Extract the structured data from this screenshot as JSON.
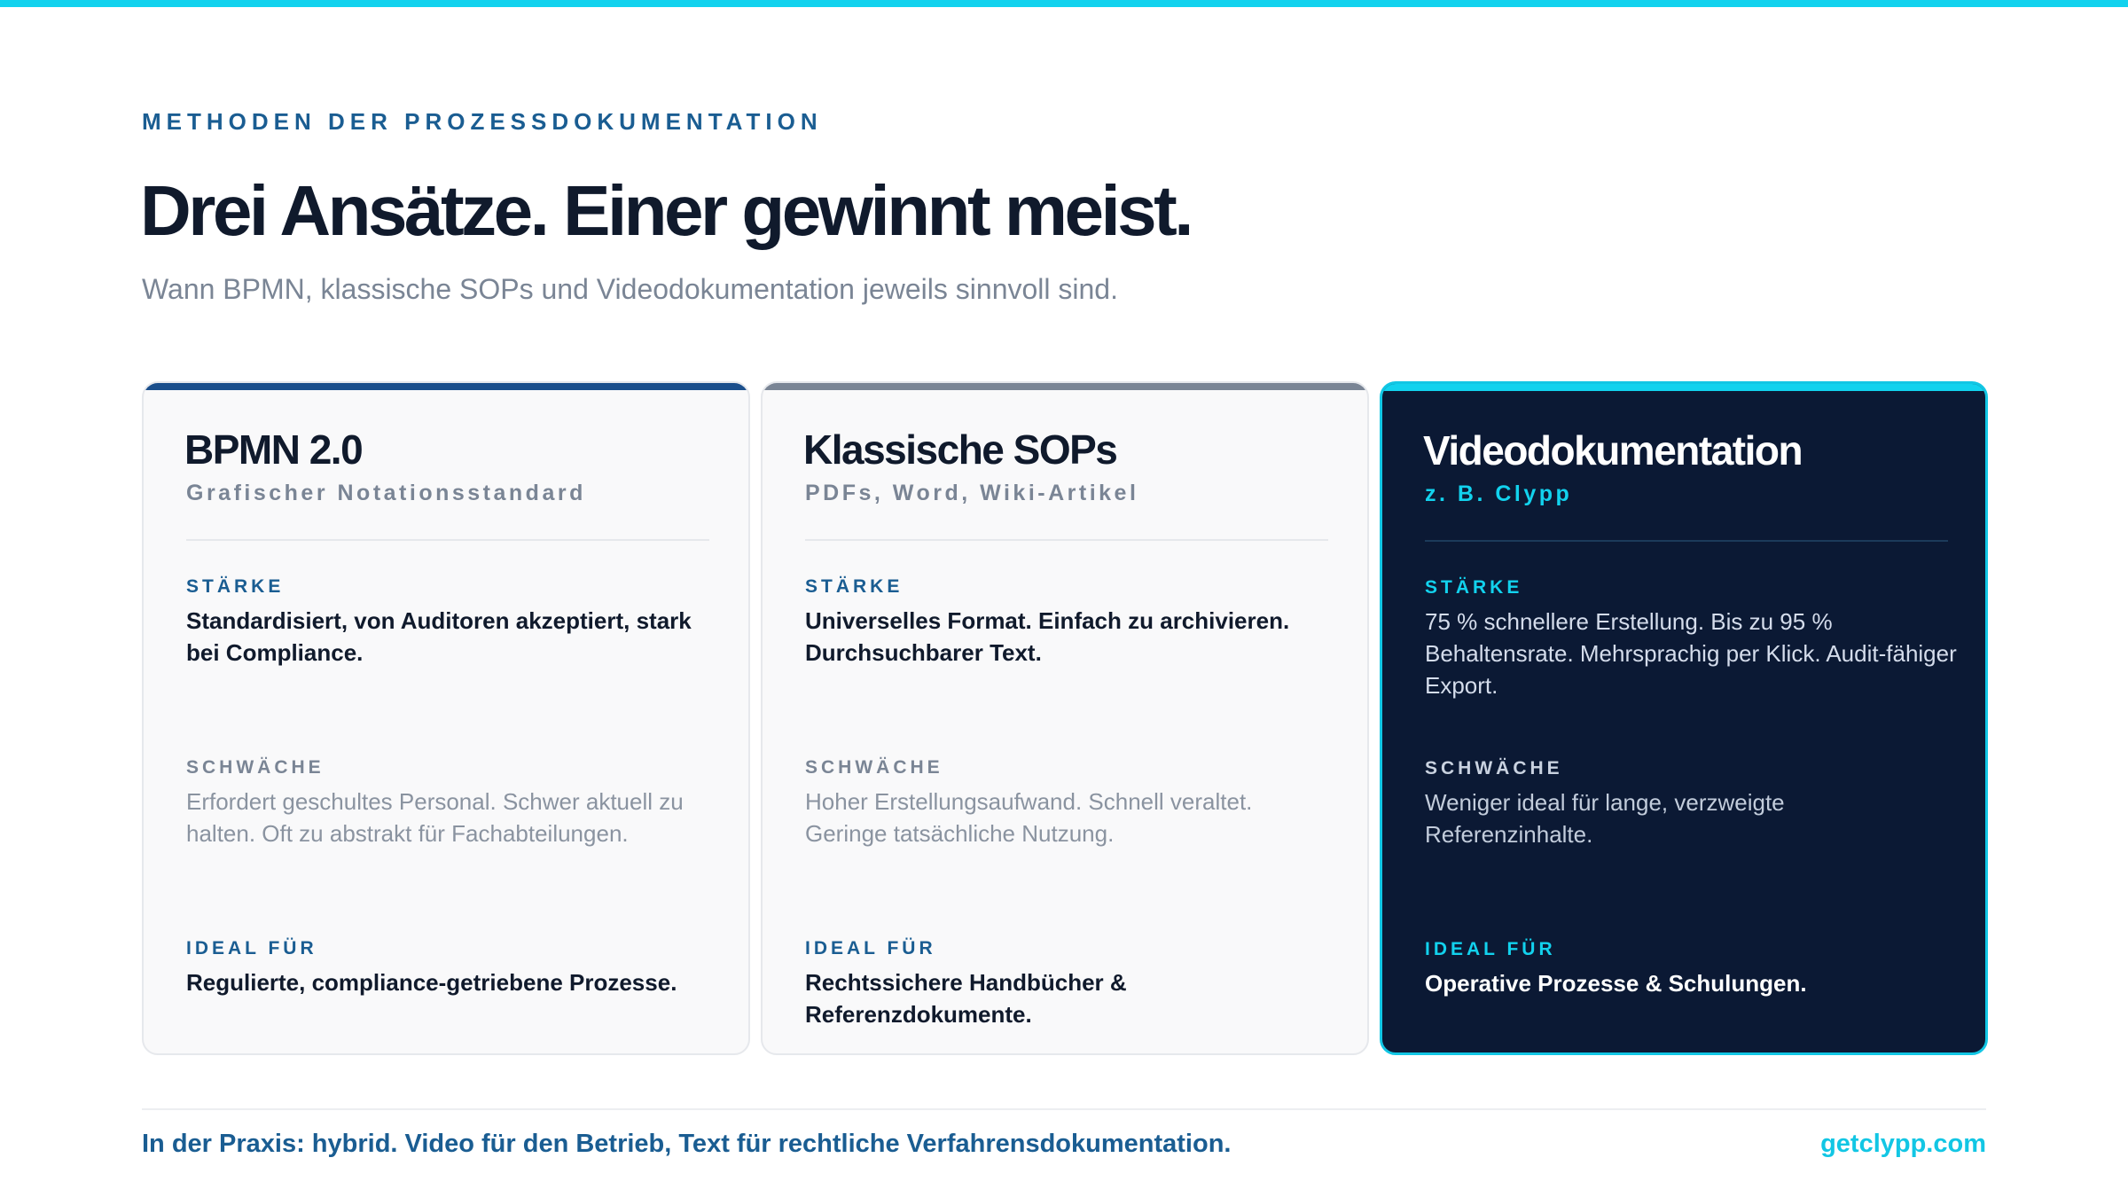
{
  "header": {
    "eyebrow": "METHODEN DER PROZESSDOKUMENTATION",
    "title": "Drei Ansätze. Einer gewinnt meist.",
    "subtitle": "Wann BPMN, klassische SOPs und Videodokumentation jeweils sinnvoll sind."
  },
  "colors": {
    "accent_cyan": "#12d2ee",
    "brand_blue": "#1a5d92",
    "bpmn_accent": "#1b4f8c",
    "sop_accent": "#7a8595",
    "video_bg": "#0b1934"
  },
  "cards": [
    {
      "title": "BPMN 2.0",
      "subtitle": "Grafischer Notationsstandard",
      "strength_label": "STÄRKE",
      "strength_text": "Standardisiert, von Auditoren akzeptiert, stark bei Compliance.",
      "weakness_label": "SCHWÄCHE",
      "weakness_text": "Erfordert geschultes Personal. Schwer aktuell zu halten. Oft zu abstrakt für Fachabteilungen.",
      "ideal_label": "IDEAL FÜR",
      "ideal_text": "Regulierte, compliance-getriebene Prozesse."
    },
    {
      "title": "Klassische SOPs",
      "subtitle": "PDFs, Word, Wiki-Artikel",
      "strength_label": "STÄRKE",
      "strength_text": "Universelles Format. Einfach zu archivieren. Durchsuchbarer Text.",
      "weakness_label": "SCHWÄCHE",
      "weakness_text": "Hoher Erstellungsaufwand. Schnell veraltet. Geringe tatsächliche Nutzung.",
      "ideal_label": "IDEAL FÜR",
      "ideal_text": "Rechtssichere Handbücher & Referenzdokumente."
    },
    {
      "title": "Videodokumentation",
      "subtitle": "z. B. Clypp",
      "strength_label": "STÄRKE",
      "strength_text": "75 % schnellere Erstellung. Bis zu 95 % Behaltensrate. Mehrsprachig per Klick. Audit-fähiger Export.",
      "weakness_label": "SCHWÄCHE",
      "weakness_text": "Weniger ideal für lange, verzweigte Referenzinhalte.",
      "ideal_label": "IDEAL FÜR",
      "ideal_text": "Operative Prozesse & Schulungen."
    }
  ],
  "footer": {
    "note": "In der Praxis: hybrid. Video für den Betrieb, Text für rechtliche Verfahrensdokumentation.",
    "link": "getclypp.com"
  }
}
